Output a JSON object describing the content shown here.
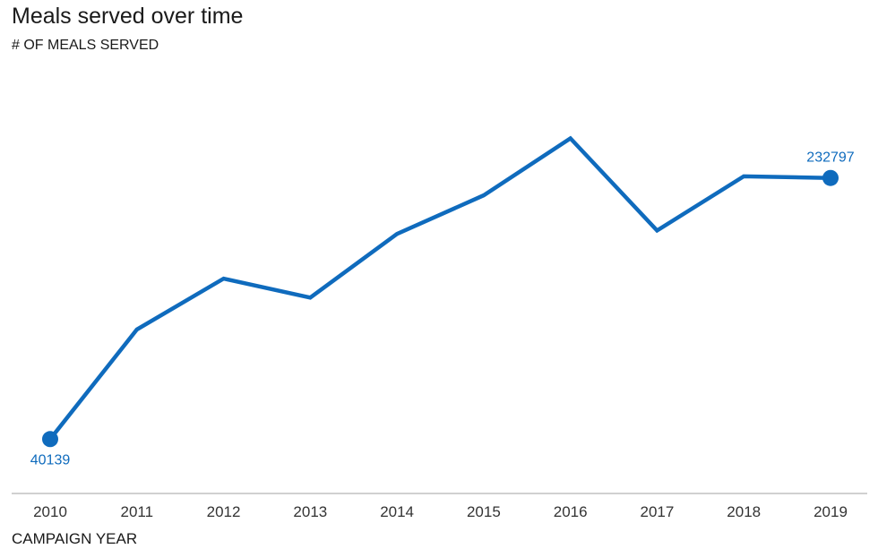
{
  "chart_data": {
    "type": "line",
    "title": "Meals served over time",
    "subtitle": "# OF MEALS SERVED",
    "xlabel": "CAMPAIGN YEAR",
    "ylabel": "",
    "categories": [
      "2010",
      "2011",
      "2012",
      "2013",
      "2014",
      "2015",
      "2016",
      "2017",
      "2018",
      "2019"
    ],
    "series": [
      {
        "values": [
          40139,
          121000,
          158500,
          144500,
          191500,
          220000,
          262000,
          194000,
          234000,
          232797
        ]
      }
    ],
    "data_labels": {
      "first": "40139",
      "last": "232797"
    },
    "ylim": [
      0,
      300000
    ],
    "grid": false,
    "legend": "none",
    "colors": {
      "line": "#0f6bbd",
      "axis": "#b3b3b3",
      "text": "#1a1a1a"
    }
  }
}
